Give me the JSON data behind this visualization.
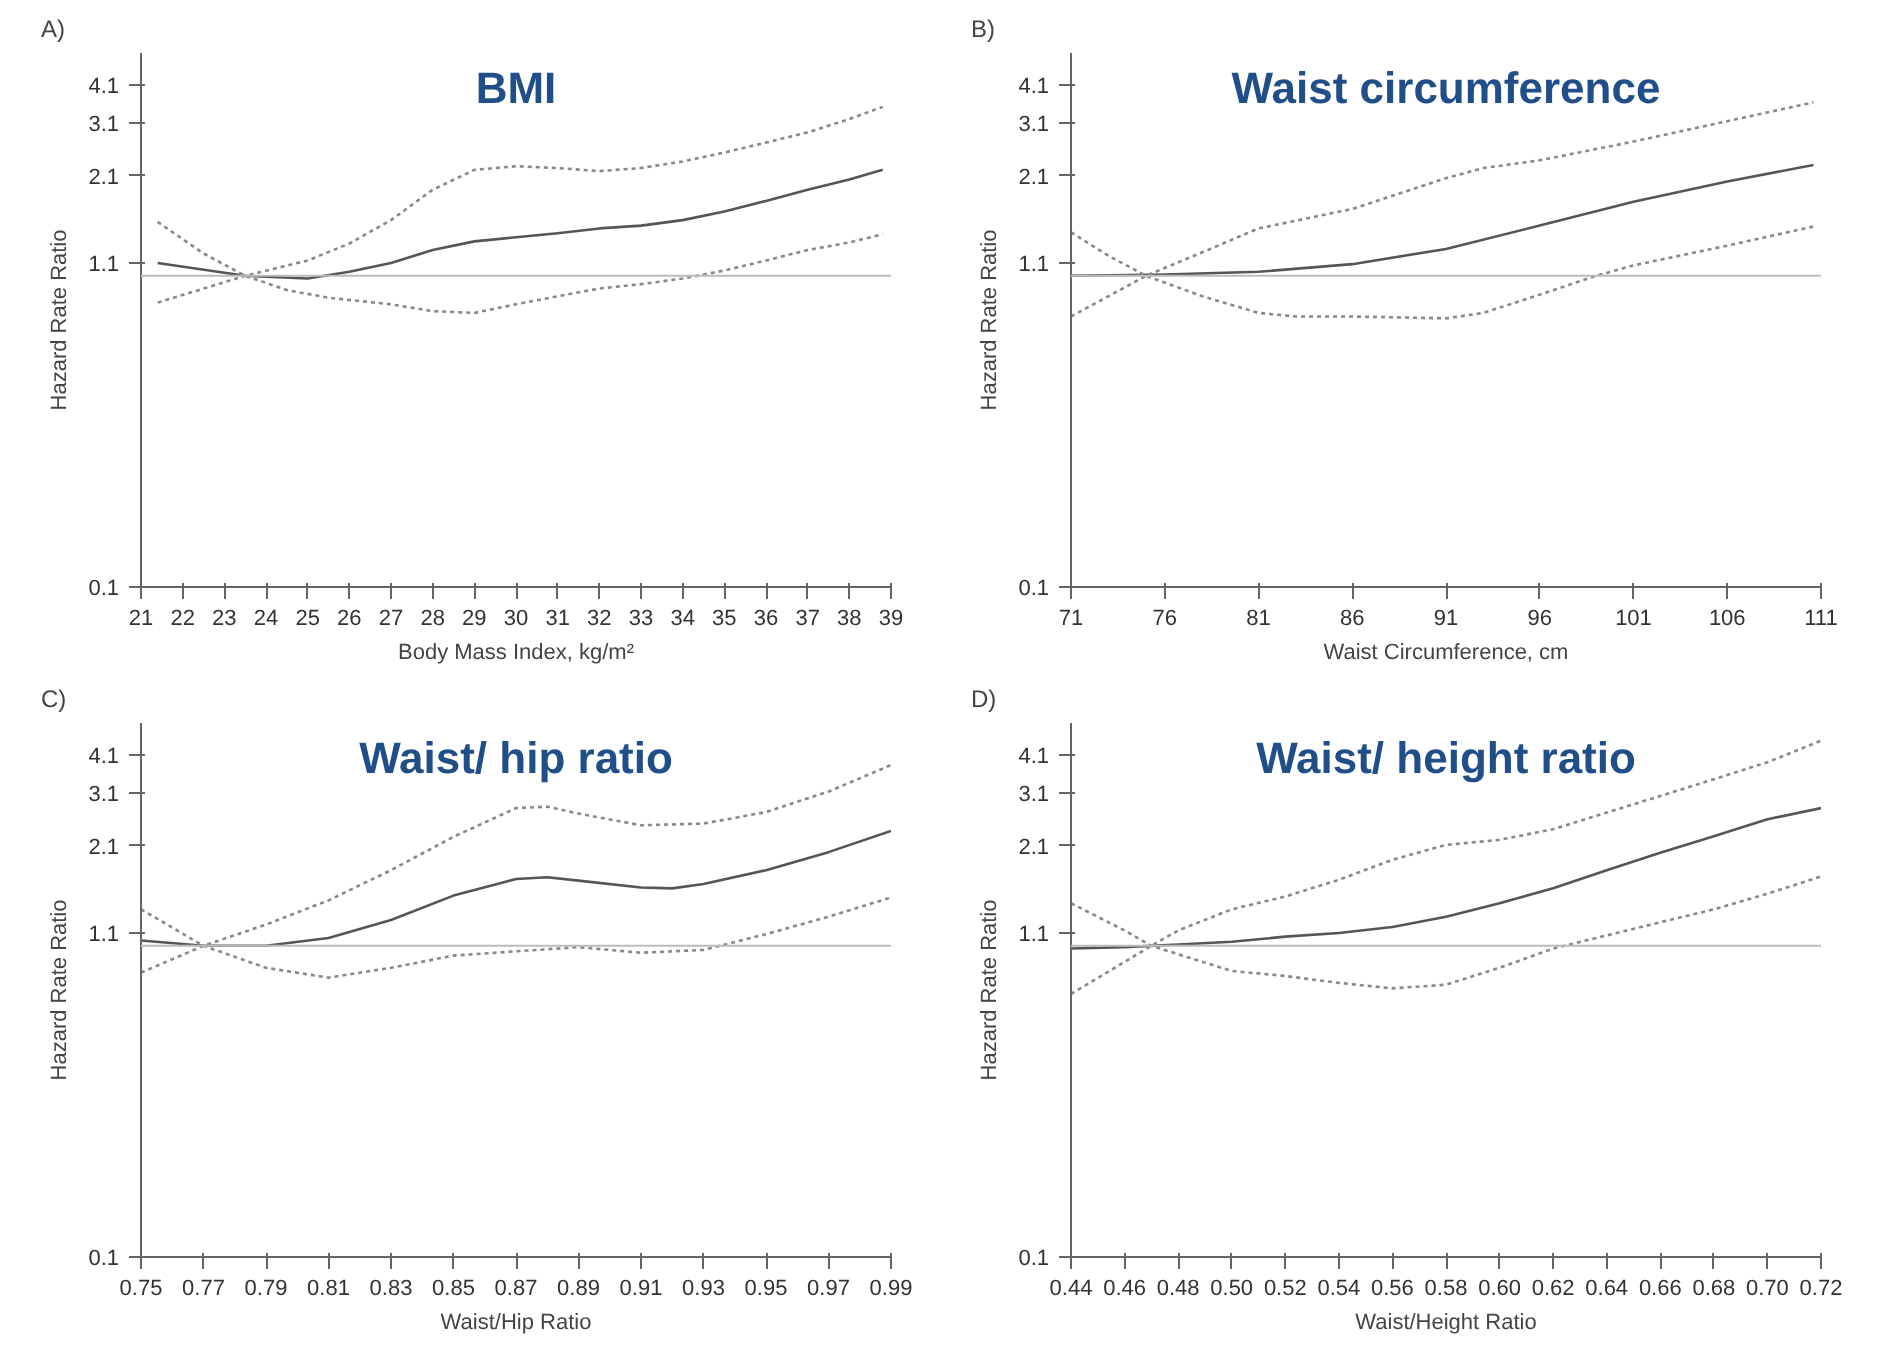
{
  "chart_data": [
    {
      "type": "line",
      "title": "BMI",
      "xlabel": "Body Mass Index, kg/m²",
      "ylabel": "Hazard Rate Ratio",
      "annotations": [
        "A)"
      ],
      "log": "y",
      "grid": false,
      "xlim": [
        21,
        39
      ],
      "xticks": [
        21,
        22,
        23,
        24,
        25,
        26,
        27,
        28,
        29,
        30,
        31,
        32,
        33,
        34,
        35,
        36,
        37,
        38,
        39
      ],
      "ylim": [
        0.1,
        5.2
      ],
      "yticks": [
        0.1,
        1.1,
        2.1,
        3.1,
        4.1
      ],
      "ref_lines": [
        {
          "axis": "y",
          "value": 1.0,
          "label": null,
          "color": "#bbbbbb"
        }
      ],
      "series": [
        {
          "color": "#555555",
          "line_style": "solid",
          "x": [
            21.4,
            23.5,
            25,
            26,
            27,
            28,
            29,
            30,
            31,
            32,
            33,
            34,
            35,
            36,
            37,
            38,
            38.8
          ],
          "values": [
            1.1,
            1.0,
            0.98,
            1.03,
            1.1,
            1.21,
            1.29,
            1.33,
            1.37,
            1.42,
            1.45,
            1.51,
            1.61,
            1.74,
            1.89,
            2.04,
            2.19
          ]
        },
        {
          "color": "#888888",
          "line_style": "dotted",
          "x": [
            21.4,
            23.5,
            25,
            26,
            27,
            28,
            29,
            30,
            31,
            32,
            33,
            34,
            35,
            36,
            37,
            38,
            38.8
          ],
          "values": [
            0.82,
            1.0,
            1.12,
            1.27,
            1.51,
            1.89,
            2.19,
            2.25,
            2.22,
            2.17,
            2.22,
            2.33,
            2.49,
            2.68,
            2.89,
            3.19,
            3.49
          ]
        },
        {
          "color": "#888888",
          "line_style": "dotted",
          "x": [
            21.4,
            22.5,
            23.5,
            24.5,
            25.5,
            27,
            28,
            29,
            30,
            31,
            32,
            33,
            34,
            35,
            36,
            37,
            38,
            38.8
          ],
          "values": [
            1.49,
            1.18,
            1.0,
            0.9,
            0.85,
            0.81,
            0.77,
            0.76,
            0.81,
            0.86,
            0.91,
            0.94,
            0.98,
            1.04,
            1.12,
            1.21,
            1.28,
            1.36
          ]
        }
      ]
    },
    {
      "type": "line",
      "title": "Waist circumference",
      "xlabel": "Waist Circumference, cm",
      "ylabel": "Hazard Rate Ratio",
      "annotations": [
        "B)"
      ],
      "log": "y",
      "grid": false,
      "xlim": [
        71,
        111
      ],
      "xticks": [
        71,
        76,
        81,
        86,
        91,
        96,
        101,
        106,
        111
      ],
      "ylim": [
        0.1,
        5.2
      ],
      "yticks": [
        0.1,
        1.1,
        2.1,
        3.1,
        4.1
      ],
      "ref_lines": [
        {
          "axis": "y",
          "value": 1.0,
          "label": null,
          "color": "#bbbbbb"
        }
      ],
      "series": [
        {
          "color": "#555555",
          "line_style": "solid",
          "x": [
            71,
            76,
            81,
            86,
            91,
            96,
            101,
            106,
            110.6
          ],
          "values": [
            1.0,
            1.01,
            1.03,
            1.09,
            1.22,
            1.45,
            1.73,
            2.01,
            2.27
          ]
        },
        {
          "color": "#888888",
          "line_style": "dotted",
          "x": [
            71,
            75,
            78,
            81,
            86,
            91,
            93,
            96,
            101,
            106,
            110.6
          ],
          "values": [
            0.74,
            1.0,
            1.19,
            1.42,
            1.64,
            2.06,
            2.22,
            2.35,
            2.7,
            3.14,
            3.61
          ]
        },
        {
          "color": "#888888",
          "line_style": "dotted",
          "x": [
            71,
            73,
            75,
            78,
            81,
            83,
            86,
            91,
            93,
            96,
            99,
            101,
            106,
            110.6
          ],
          "values": [
            1.38,
            1.16,
            1.0,
            0.86,
            0.76,
            0.74,
            0.74,
            0.73,
            0.76,
            0.87,
            1.0,
            1.08,
            1.25,
            1.44
          ]
        }
      ]
    },
    {
      "type": "line",
      "title": "Waist/ hip ratio",
      "xlabel": "Waist/Hip Ratio",
      "ylabel": "Hazard Rate Ratio",
      "annotations": [
        "C)"
      ],
      "log": "y",
      "grid": false,
      "xlim": [
        0.75,
        0.99
      ],
      "xticks": [
        0.75,
        0.77,
        0.79,
        0.81,
        0.83,
        0.85,
        0.87,
        0.89,
        0.91,
        0.93,
        0.95,
        0.97,
        0.99
      ],
      "ylim": [
        0.1,
        5.2
      ],
      "yticks": [
        0.1,
        1.1,
        2.1,
        3.1,
        4.1
      ],
      "ref_lines": [
        {
          "axis": "y",
          "value": 1.0,
          "label": null,
          "color": "#bbbbbb"
        }
      ],
      "series": [
        {
          "color": "#555555",
          "line_style": "solid",
          "x": [
            0.75,
            0.77,
            0.79,
            0.81,
            0.83,
            0.85,
            0.87,
            0.88,
            0.89,
            0.91,
            0.92,
            0.93,
            0.95,
            0.97,
            0.99
          ],
          "values": [
            1.04,
            1.0,
            1.0,
            1.06,
            1.21,
            1.45,
            1.64,
            1.66,
            1.62,
            1.54,
            1.53,
            1.58,
            1.75,
            2.0,
            2.34
          ]
        },
        {
          "color": "#888888",
          "line_style": "dotted",
          "x": [
            0.75,
            0.77,
            0.79,
            0.81,
            0.83,
            0.85,
            0.87,
            0.88,
            0.89,
            0.91,
            0.93,
            0.95,
            0.97,
            0.99
          ],
          "values": [
            0.82,
            1.0,
            1.17,
            1.4,
            1.75,
            2.24,
            2.77,
            2.8,
            2.66,
            2.44,
            2.47,
            2.69,
            3.13,
            3.81
          ]
        },
        {
          "color": "#888888",
          "line_style": "dotted",
          "x": [
            0.75,
            0.77,
            0.79,
            0.81,
            0.83,
            0.85,
            0.87,
            0.89,
            0.91,
            0.93,
            0.95,
            0.97,
            0.99
          ],
          "values": [
            1.31,
            1.0,
            0.85,
            0.79,
            0.85,
            0.93,
            0.96,
            0.99,
            0.95,
            0.97,
            1.09,
            1.24,
            1.43
          ]
        }
      ]
    },
    {
      "type": "line",
      "title": "Waist/ height ratio",
      "xlabel": "Waist/Height Ratio",
      "ylabel": "Hazard Rate Ratio",
      "annotations": [
        "D)"
      ],
      "log": "y",
      "grid": false,
      "xlim": [
        0.44,
        0.72
      ],
      "xticks": [
        0.44,
        0.46,
        0.48,
        {
          "value": 0.5,
          "label": "0.50"
        },
        0.52,
        0.54,
        0.56,
        0.58,
        {
          "value": 0.6,
          "label": "0.60"
        },
        0.62,
        0.64,
        0.66,
        0.68,
        {
          "value": 0.7,
          "label": "0.70"
        },
        0.72
      ],
      "ylim": [
        0.1,
        5.2
      ],
      "yticks": [
        0.1,
        1.1,
        2.1,
        3.1,
        4.1
      ],
      "ref_lines": [
        {
          "axis": "y",
          "value": 1.0,
          "label": null,
          "color": "#bbbbbb"
        }
      ],
      "series": [
        {
          "color": "#555555",
          "line_style": "solid",
          "x": [
            0.44,
            0.46,
            0.48,
            0.5,
            0.52,
            0.54,
            0.56,
            0.58,
            0.6,
            0.62,
            0.64,
            0.66,
            0.68,
            0.7,
            0.72
          ],
          "values": [
            0.98,
            0.99,
            1.01,
            1.03,
            1.07,
            1.1,
            1.15,
            1.24,
            1.37,
            1.53,
            1.75,
            1.99,
            2.25,
            2.55,
            2.77
          ]
        },
        {
          "color": "#888888",
          "line_style": "dotted",
          "x": [
            0.44,
            0.47,
            0.48,
            0.5,
            0.52,
            0.54,
            0.56,
            0.58,
            0.6,
            0.62,
            0.64,
            0.66,
            0.68,
            0.7,
            0.72
          ],
          "values": [
            0.7,
            1.0,
            1.12,
            1.31,
            1.44,
            1.63,
            1.89,
            2.11,
            2.19,
            2.37,
            2.68,
            3.03,
            3.43,
            3.89,
            4.56
          ]
        },
        {
          "color": "#888888",
          "line_style": "dotted",
          "x": [
            0.44,
            0.46,
            0.47,
            0.5,
            0.52,
            0.54,
            0.56,
            0.58,
            0.6,
            0.62,
            0.64,
            0.66,
            0.68,
            0.7,
            0.72
          ],
          "values": [
            1.37,
            1.12,
            1.0,
            0.83,
            0.8,
            0.76,
            0.73,
            0.75,
            0.85,
            0.98,
            1.08,
            1.19,
            1.31,
            1.47,
            1.67
          ]
        }
      ]
    }
  ]
}
